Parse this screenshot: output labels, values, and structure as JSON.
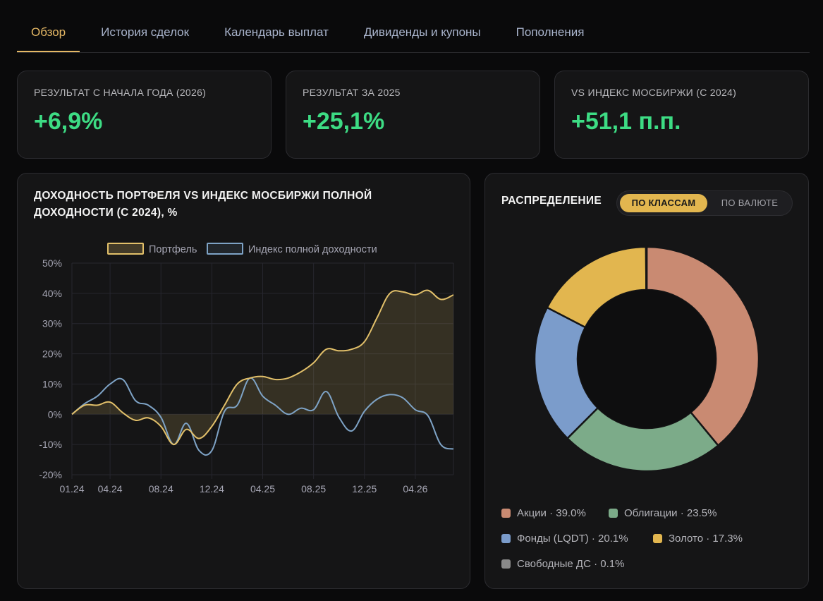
{
  "tabs": [
    {
      "label": "Обзор",
      "active": true
    },
    {
      "label": "История сделок",
      "active": false
    },
    {
      "label": "Календарь выплат",
      "active": false
    },
    {
      "label": "Дивиденды и купоны",
      "active": false
    },
    {
      "label": "Пополнения",
      "active": false
    }
  ],
  "kpis": [
    {
      "label": "РЕЗУЛЬТАТ С НАЧАЛА ГОДА (2026)",
      "value": "+6,9%"
    },
    {
      "label": "РЕЗУЛЬТАТ ЗА 2025",
      "value": "+25,1%"
    },
    {
      "label": "VS ИНДЕКС МОСБИРЖИ (С 2024)",
      "value": "+51,1 п.п."
    }
  ],
  "colors": {
    "accent": "#e5b865",
    "positive": "#3ddc84",
    "portfolio": "#e2c06a",
    "index": "#7ea3c6"
  },
  "distribution": {
    "title": "РАСПРЕДЕЛЕНИЕ",
    "toggle": {
      "classes": "ПО КЛАССАМ",
      "currency": "ПО ВАЛЮТЕ",
      "selected": "classes"
    }
  },
  "chart_data": [
    {
      "type": "line",
      "title": "ДОХОДНОСТЬ ПОРТФЕЛЯ VS ИНДЕКС МОСБИРЖИ ПОЛНОЙ ДОХОДНОСТИ (С 2024), %",
      "legend_position": "top",
      "grid": true,
      "ylim": [
        -20,
        50
      ],
      "y_ticks": [
        "50%",
        "40%",
        "30%",
        "20%",
        "10%",
        "0%",
        "-10%",
        "-20%"
      ],
      "y_tick_values": [
        50,
        40,
        30,
        20,
        10,
        0,
        -10,
        -20
      ],
      "x_ticks": [
        "01.24",
        "04.24",
        "08.24",
        "12.24",
        "04.25",
        "08.25",
        "12.25",
        "04.26"
      ],
      "x_tick_index": [
        0,
        3,
        7,
        11,
        15,
        19,
        23,
        27
      ],
      "series": [
        {
          "name": "Портфель",
          "color": "#e2c06a",
          "fill": true,
          "values": [
            0,
            3,
            3,
            4,
            0.5,
            -2,
            -1.2,
            -4,
            -10,
            -5,
            -8,
            -4,
            3,
            10,
            12,
            12.5,
            11.5,
            12,
            14,
            17,
            21.5,
            21,
            21.5,
            24,
            32,
            40,
            40.5,
            39.5,
            41,
            38,
            39.5
          ]
        },
        {
          "name": "Индекс полной доходности",
          "color": "#7ea3c6",
          "fill": false,
          "values": [
            0,
            3.5,
            6,
            10,
            11.5,
            4.5,
            3,
            -1,
            -10,
            -3,
            -12,
            -12,
            1,
            3,
            12,
            6,
            3,
            0,
            2,
            1.5,
            7.5,
            -1,
            -5.5,
            1,
            5,
            6.5,
            5.5,
            1.5,
            -0.5,
            -10,
            -11.5
          ]
        }
      ]
    },
    {
      "type": "pie",
      "title": "РАСПРЕДЕЛЕНИЕ",
      "donut": true,
      "slices": [
        {
          "label": "Акции",
          "value": 39.0,
          "display": "Акции · 39.0%",
          "color": "#c98a72"
        },
        {
          "label": "Облигации",
          "value": 23.5,
          "display": "Облигации · 23.5%",
          "color": "#7cab89"
        },
        {
          "label": "Фонды (LQDT)",
          "value": 20.1,
          "display": "Фонды (LQDT) · 20.1%",
          "color": "#7b9ccb"
        },
        {
          "label": "Золото",
          "value": 17.3,
          "display": "Золото · 17.3%",
          "color": "#e2b64f"
        },
        {
          "label": "Свободные ДС",
          "value": 0.1,
          "display": "Свободные ДС · 0.1%",
          "color": "#8a8a8a"
        }
      ]
    }
  ]
}
